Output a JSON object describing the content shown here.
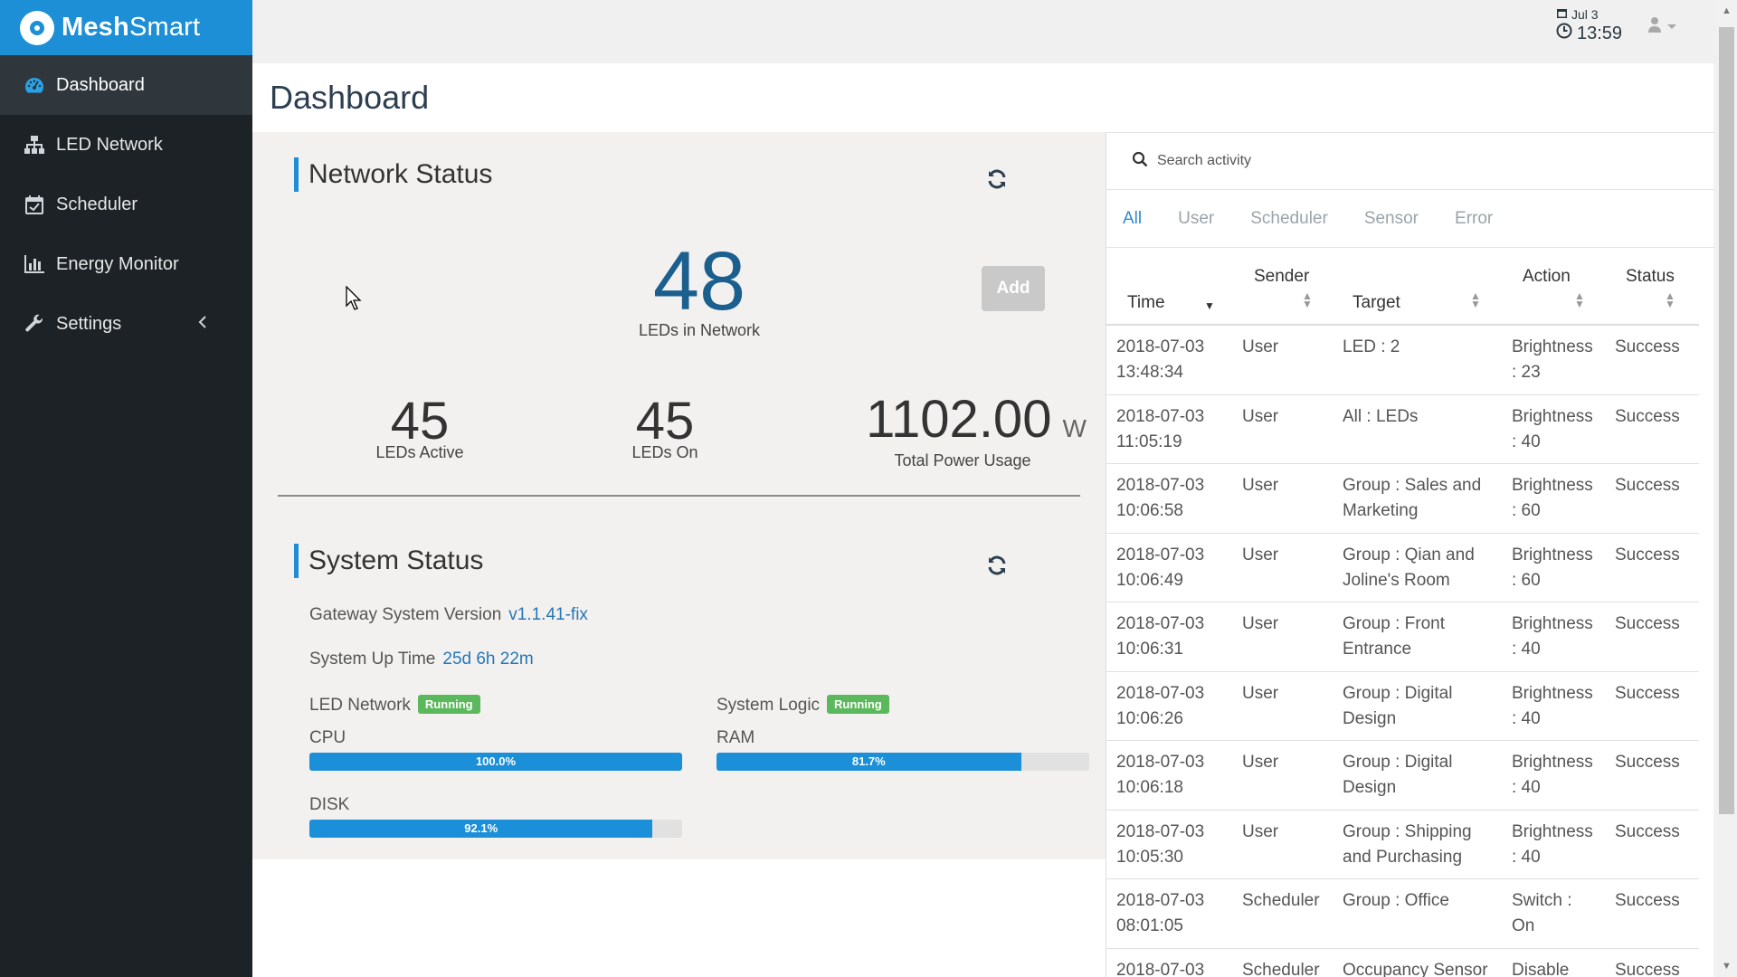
{
  "brand": {
    "name_bold": "Mesh",
    "name_rest": "Smart"
  },
  "sidebar": {
    "items": [
      {
        "label": "Dashboard",
        "icon": "dashboard-gauge-icon"
      },
      {
        "label": "LED Network",
        "icon": "sitemap-icon"
      },
      {
        "label": "Scheduler",
        "icon": "calendar-check-icon"
      },
      {
        "label": "Energy Monitor",
        "icon": "bar-chart-icon"
      },
      {
        "label": "Settings",
        "icon": "wrench-icon"
      }
    ]
  },
  "topbar": {
    "date": "Jul 3",
    "time": "13:59"
  },
  "page": {
    "title": "Dashboard"
  },
  "network_status": {
    "title": "Network Status",
    "leds_in_network": "48",
    "leds_in_network_label": "LEDs in Network",
    "add_label": "Add",
    "leds_active": "45",
    "leds_active_label": "LEDs Active",
    "leds_on": "45",
    "leds_on_label": "LEDs On",
    "total_power": "1102.00",
    "total_power_unit": "W",
    "total_power_label": "Total Power Usage"
  },
  "system_status": {
    "title": "System Status",
    "gateway_label": "Gateway System Version",
    "gateway_value": "v1.1.41-fix",
    "uptime_label": "System Up Time",
    "uptime_value": "25d 6h 22m",
    "led_network_label": "LED Network",
    "led_network_status": "Running",
    "system_logic_label": "System Logic",
    "system_logic_status": "Running",
    "cpu_label": "CPU",
    "cpu_value": "100.0%",
    "cpu_fraction": 1.0,
    "ram_label": "RAM",
    "ram_value": "81.7%",
    "ram_fraction": 0.817,
    "disk_label": "DISK",
    "disk_value": "92.1%",
    "disk_fraction": 0.921
  },
  "activity": {
    "search_placeholder": "Search activity",
    "tabs": [
      "All",
      "User",
      "Scheduler",
      "Sensor",
      "Error"
    ],
    "active_tab": "All",
    "columns": {
      "time": "Time",
      "sender": "Sender",
      "target": "Target",
      "action": "Action",
      "status": "Status"
    },
    "rows": [
      {
        "date": "2018-07-03",
        "clock": "13:48:34",
        "sender": "User",
        "target": "LED : 2",
        "action1": "Brightness",
        "action2": ": 23",
        "status": "Success"
      },
      {
        "date": "2018-07-03",
        "clock": "11:05:19",
        "sender": "User",
        "target": "All : LEDs",
        "action1": "Brightness",
        "action2": ": 40",
        "status": "Success"
      },
      {
        "date": "2018-07-03",
        "clock": "10:06:58",
        "sender": "User",
        "target": "Group : Sales and Marketing",
        "action1": "Brightness",
        "action2": ": 60",
        "status": "Success"
      },
      {
        "date": "2018-07-03",
        "clock": "10:06:49",
        "sender": "User",
        "target": "Group : Qian and Joline's Room",
        "action1": "Brightness",
        "action2": ": 60",
        "status": "Success"
      },
      {
        "date": "2018-07-03",
        "clock": "10:06:31",
        "sender": "User",
        "target": "Group : Front Entrance",
        "action1": "Brightness",
        "action2": ": 40",
        "status": "Success"
      },
      {
        "date": "2018-07-03",
        "clock": "10:06:26",
        "sender": "User",
        "target": "Group : Digital Design",
        "action1": "Brightness",
        "action2": ": 40",
        "status": "Success"
      },
      {
        "date": "2018-07-03",
        "clock": "10:06:18",
        "sender": "User",
        "target": "Group : Digital Design",
        "action1": "Brightness",
        "action2": ": 40",
        "status": "Success"
      },
      {
        "date": "2018-07-03",
        "clock": "10:05:30",
        "sender": "User",
        "target": "Group : Shipping and Purchasing",
        "action1": "Brightness",
        "action2": ": 40",
        "status": "Success"
      },
      {
        "date": "2018-07-03",
        "clock": "08:01:05",
        "sender": "Scheduler",
        "target": "Group : Office",
        "action1": "Switch :",
        "action2": "On",
        "status": "Success"
      },
      {
        "date": "2018-07-03",
        "clock": "",
        "sender": "Scheduler",
        "target": "Occupancy Sensor",
        "action1": "Disable",
        "action2": "",
        "status": "Success"
      }
    ]
  }
}
